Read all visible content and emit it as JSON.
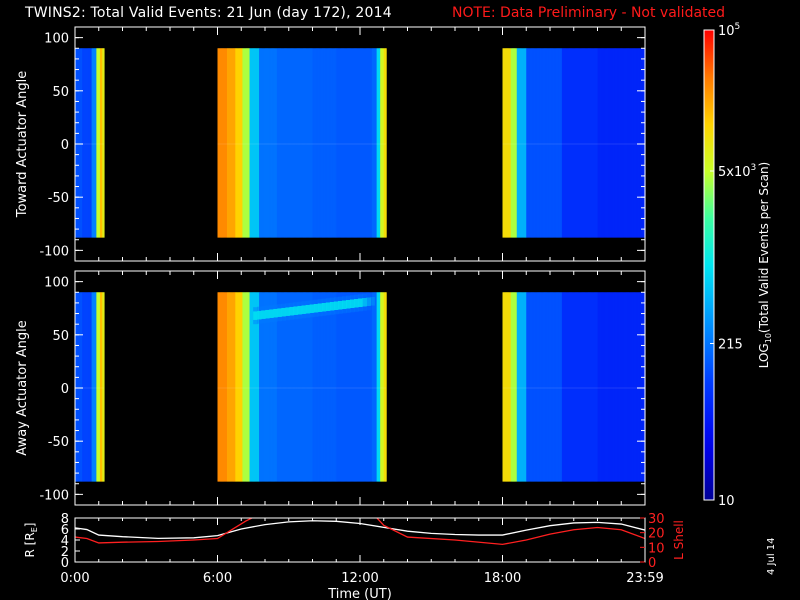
{
  "header": {
    "title": "TWINS2: Total Valid Events: 21 Jun (day 172), 2014",
    "note": "NOTE: Data Preliminary - Not validated"
  },
  "stamp": "4 Jul 14",
  "colors": {
    "note": "#ff1a1a",
    "background": "#000000",
    "axes": "#ffffff",
    "r_line": "#ffffff",
    "lshell_line": "#ff2020"
  },
  "chart_data": [
    {
      "type": "heatmap",
      "panel": "toward",
      "ylabel": "Toward Actuator Angle",
      "xlim": [
        0,
        24
      ],
      "ylim": [
        -110,
        110
      ],
      "yticks": [
        100,
        50,
        0,
        -50,
        -100
      ],
      "data_angle_range": [
        -88,
        90
      ],
      "scale": "log",
      "segments": [
        {
          "start": 0.0,
          "end": 1.22,
          "columns": [
            [
              0.0,
              0.28
            ],
            [
              0.28,
              0.26
            ],
            [
              0.66,
              0.35
            ],
            [
              0.9,
              0.7
            ],
            [
              1.05,
              0.82
            ],
            [
              1.15,
              0.74
            ]
          ]
        },
        {
          "start": 6.0,
          "end": 13.1,
          "columns": [
            [
              6.0,
              0.88
            ],
            [
              6.35,
              0.85
            ],
            [
              6.7,
              0.8
            ],
            [
              7.0,
              0.68
            ],
            [
              7.3,
              0.45
            ],
            [
              7.7,
              0.33
            ],
            [
              8.5,
              0.31
            ],
            [
              10.0,
              0.3
            ],
            [
              11.0,
              0.29
            ],
            [
              12.0,
              0.29
            ],
            [
              12.5,
              0.31
            ],
            [
              12.7,
              0.48
            ],
            [
              12.85,
              0.72
            ],
            [
              13.0,
              0.78
            ]
          ]
        },
        {
          "start": 18.0,
          "end": 24.0,
          "columns": [
            [
              18.0,
              0.78
            ],
            [
              18.35,
              0.68
            ],
            [
              18.6,
              0.42
            ],
            [
              19.0,
              0.28
            ],
            [
              20.5,
              0.22
            ],
            [
              22.0,
              0.2
            ],
            [
              24.0,
              0.19
            ]
          ]
        }
      ]
    },
    {
      "type": "heatmap",
      "panel": "away",
      "ylabel": "Away Actuator Angle",
      "xlim": [
        0,
        24
      ],
      "ylim": [
        -110,
        110
      ],
      "yticks": [
        100,
        50,
        0,
        -50,
        -100
      ],
      "data_angle_range": [
        -88,
        90
      ],
      "scale": "log",
      "segments": [
        {
          "start": 0.0,
          "end": 1.22,
          "columns": [
            [
              0.0,
              0.28
            ],
            [
              0.28,
              0.26
            ],
            [
              0.66,
              0.35
            ],
            [
              0.9,
              0.7
            ],
            [
              1.05,
              0.82
            ],
            [
              1.15,
              0.74
            ]
          ]
        },
        {
          "start": 6.0,
          "end": 13.1,
          "columns": [
            [
              6.0,
              0.88
            ],
            [
              6.35,
              0.85
            ],
            [
              6.7,
              0.8
            ],
            [
              7.0,
              0.68
            ],
            [
              7.3,
              0.45
            ],
            [
              7.7,
              0.33
            ],
            [
              8.5,
              0.31
            ],
            [
              10.0,
              0.3
            ],
            [
              11.0,
              0.29
            ],
            [
              12.0,
              0.29
            ],
            [
              12.5,
              0.31
            ],
            [
              12.7,
              0.48
            ],
            [
              12.85,
              0.72
            ],
            [
              13.0,
              0.78
            ]
          ]
        },
        {
          "start": 18.0,
          "end": 24.0,
          "columns": [
            [
              18.0,
              0.78
            ],
            [
              18.35,
              0.68
            ],
            [
              18.6,
              0.42
            ],
            [
              19.0,
              0.28
            ],
            [
              20.5,
              0.22
            ],
            [
              22.0,
              0.2
            ],
            [
              24.0,
              0.19
            ]
          ]
        }
      ],
      "enhancement": {
        "start": 7.5,
        "end": 12.6,
        "angle_center_start": 68,
        "angle_center_end": 82,
        "level": 0.5
      }
    },
    {
      "type": "line",
      "panel": "orbit",
      "xlabel": "Time (UT)",
      "xtick_labels": [
        "0:00",
        "6:00",
        "12:00",
        "18:00",
        "23:59"
      ],
      "xticks": [
        0,
        6,
        12,
        18,
        24
      ],
      "ylabel_left": "R [R_E]",
      "ylabel_right": "L Shell",
      "ylim_left": [
        0,
        8
      ],
      "yticks_left": [
        0,
        2,
        4,
        6,
        8
      ],
      "ylim_right": [
        0,
        30
      ],
      "yticks_right": [
        0,
        10,
        20,
        30
      ],
      "series": [
        {
          "axis": "left",
          "x": [
            0,
            0.5,
            1.0,
            2.0,
            3.5,
            5.0,
            6.0,
            7.0,
            8.0,
            9.0,
            10.0,
            11.0,
            12.0,
            13.0,
            14.0,
            15.0,
            16.0,
            17.0,
            18.0,
            19.0,
            20.0,
            21.0,
            22.0,
            23.0,
            24.0
          ],
          "y": [
            6.2,
            5.9,
            4.9,
            4.6,
            4.3,
            4.4,
            4.8,
            6.0,
            6.8,
            7.3,
            7.5,
            7.4,
            7.0,
            6.3,
            5.6,
            5.2,
            5.0,
            4.9,
            4.9,
            5.8,
            6.6,
            7.1,
            7.2,
            6.9,
            5.8
          ]
        },
        {
          "axis": "right",
          "x": [
            0,
            0.5,
            1.0,
            2.0,
            3.5,
            5.0,
            6.0,
            6.6,
            7.2,
            7.7,
            12.6,
            13.0,
            14.0,
            16.0,
            18.0,
            19.0,
            20.0,
            21.0,
            22.0,
            23.0,
            24.0
          ],
          "y": [
            17,
            16,
            13,
            13.5,
            14,
            15,
            16,
            22,
            28,
            32,
            32,
            25,
            17,
            15,
            12,
            15,
            19,
            22,
            23.5,
            22,
            16
          ]
        }
      ]
    }
  ],
  "colorbar": {
    "label": "LOG10(Total Valid Events per Scan)",
    "label_prefix": "LOG",
    "label_sub": "10",
    "label_suffix": "(Total Valid Events per Scan)",
    "ticks": [
      {
        "base": "10",
        "exp": "5",
        "fraction": 1.0
      },
      {
        "base": "5x10",
        "exp": "3",
        "fraction": 0.7
      },
      {
        "base": "215",
        "exp": "",
        "fraction": 0.333
      },
      {
        "base": "10",
        "exp": "",
        "fraction": 0.0
      }
    ]
  }
}
